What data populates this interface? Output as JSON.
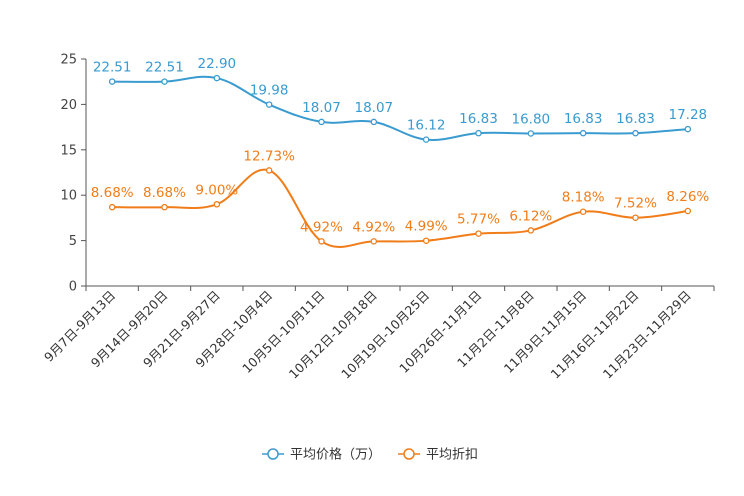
{
  "chart_data": {
    "type": "line",
    "title": "",
    "xlabel": "",
    "ylabel": "",
    "ylim": [
      0,
      25
    ],
    "yticks": [
      0,
      5,
      10,
      15,
      20,
      25
    ],
    "grid": false,
    "legend_position": "bottom-center",
    "categories": [
      "9月7日-9月13日",
      "9月14日-9月20日",
      "9月21日-9月27日",
      "9月28日-10月4日",
      "10月5日-10月11日",
      "10月12日-10月18日",
      "10月19日-10月25日",
      "10月26日-11月1日",
      "11月2日-11月8日",
      "11月9日-11月15日",
      "11月16日-11月22日",
      "11月23日-11月29日"
    ],
    "series": [
      {
        "name": "平均价格（万）",
        "color": "#3a9bd0",
        "values": [
          22.51,
          22.51,
          22.9,
          19.98,
          18.07,
          18.07,
          16.12,
          16.83,
          16.8,
          16.83,
          16.83,
          17.28
        ],
        "labels": [
          "22.51",
          "22.51",
          "22.90",
          "19.98",
          "18.07",
          "18.07",
          "16.12",
          "16.83",
          "16.80",
          "16.83",
          "16.83",
          "17.28"
        ]
      },
      {
        "name": "平均折扣",
        "color": "#f07d1a",
        "values": [
          8.68,
          8.68,
          9.0,
          12.73,
          4.92,
          4.92,
          4.99,
          5.77,
          6.12,
          8.18,
          7.52,
          8.26
        ],
        "labels": [
          "8.68%",
          "8.68%",
          "9.00%",
          "12.73%",
          "4.92%",
          "4.92%",
          "4.99%",
          "5.77%",
          "6.12%",
          "8.18%",
          "7.52%",
          "8.26%"
        ]
      }
    ]
  }
}
